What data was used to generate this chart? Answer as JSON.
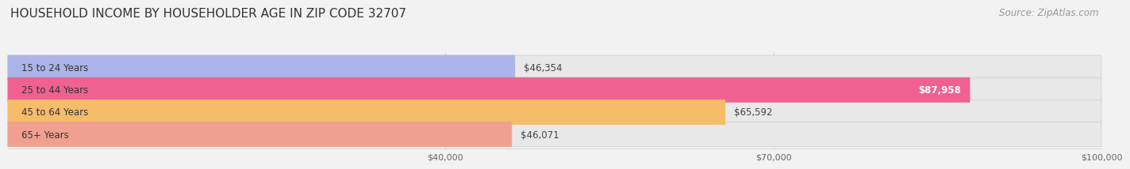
{
  "title": "HOUSEHOLD INCOME BY HOUSEHOLDER AGE IN ZIP CODE 32707",
  "source": "Source: ZipAtlas.com",
  "categories": [
    "15 to 24 Years",
    "25 to 44 Years",
    "45 to 64 Years",
    "65+ Years"
  ],
  "values": [
    46354,
    87958,
    65592,
    46071
  ],
  "bar_colors": [
    "#aab4e8",
    "#f06090",
    "#f5bc6a",
    "#f0a090"
  ],
  "value_labels": [
    "$46,354",
    "$87,958",
    "$65,592",
    "$46,071"
  ],
  "label_inside": [
    false,
    true,
    false,
    false
  ],
  "xmin": 0,
  "xmax": 100000,
  "xticks": [
    40000,
    70000,
    100000
  ],
  "xtick_labels": [
    "$40,000",
    "$70,000",
    "$100,000"
  ],
  "background_color": "#f2f2f2",
  "bar_bg_color": "#e8e8e8",
  "title_fontsize": 11,
  "source_fontsize": 8.5
}
